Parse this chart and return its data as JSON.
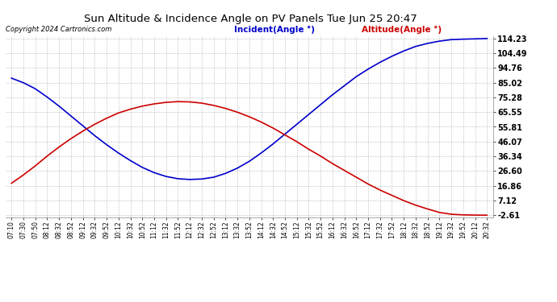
{
  "title": "Sun Altitude & Incidence Angle on PV Panels Tue Jun 25 20:47",
  "copyright": "Copyright 2024 Cartronics.com",
  "legend_incident": "Incident(Angle °)",
  "legend_altitude": "Altitude(Angle °)",
  "incident_color": "#0000cc",
  "altitude_color": "#cc0000",
  "background_color": "#ffffff",
  "grid_color": "#bbbbbb",
  "yticks": [
    114.23,
    104.49,
    94.76,
    85.02,
    75.28,
    65.55,
    55.81,
    46.07,
    36.34,
    26.6,
    16.86,
    7.12,
    -2.61
  ],
  "ymin": -2.61,
  "ymax": 114.23,
  "xtick_labels": [
    "07:10",
    "07:30",
    "07:50",
    "08:12",
    "08:32",
    "08:52",
    "09:12",
    "09:32",
    "09:52",
    "10:12",
    "10:32",
    "10:52",
    "11:12",
    "11:32",
    "11:52",
    "12:12",
    "12:32",
    "12:52",
    "13:12",
    "13:32",
    "13:52",
    "14:12",
    "14:32",
    "14:52",
    "15:12",
    "15:32",
    "15:52",
    "16:12",
    "16:32",
    "16:52",
    "17:12",
    "17:32",
    "17:52",
    "18:12",
    "18:32",
    "18:52",
    "19:12",
    "19:32",
    "19:52",
    "20:12",
    "20:32"
  ],
  "incident_y": [
    88.0,
    85.0,
    81.0,
    75.5,
    69.5,
    63.0,
    56.5,
    50.0,
    44.0,
    38.5,
    33.5,
    29.0,
    25.5,
    23.0,
    21.5,
    21.0,
    21.3,
    22.5,
    25.0,
    28.5,
    33.0,
    38.5,
    44.5,
    51.0,
    57.5,
    64.0,
    70.5,
    77.0,
    83.0,
    89.0,
    94.0,
    98.5,
    102.5,
    106.0,
    109.0,
    111.0,
    112.5,
    113.5,
    113.8,
    114.0,
    114.23
  ],
  "altitude_y": [
    18.5,
    24.0,
    30.0,
    36.5,
    42.5,
    48.0,
    53.0,
    57.5,
    61.5,
    65.0,
    67.5,
    69.5,
    71.0,
    72.0,
    72.5,
    72.3,
    71.5,
    70.0,
    68.0,
    65.5,
    62.5,
    59.0,
    55.0,
    50.5,
    46.0,
    41.0,
    36.5,
    31.5,
    27.0,
    22.5,
    18.0,
    14.0,
    10.5,
    7.0,
    4.0,
    1.5,
    -0.8,
    -2.0,
    -2.4,
    -2.55,
    -2.61
  ]
}
